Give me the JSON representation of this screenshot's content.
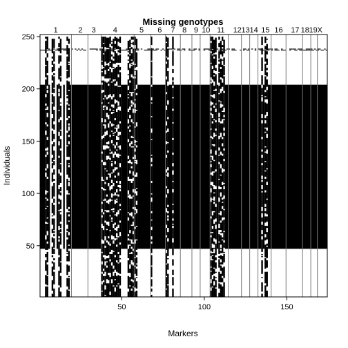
{
  "chart_data": {
    "type": "heatmap",
    "title": "Missing genotypes",
    "xlabel": "Markers",
    "ylabel": "Individuals",
    "xlim": [
      0.5,
      174.5
    ],
    "ylim": [
      1,
      252
    ],
    "x_ticks": [
      50,
      100,
      150
    ],
    "y_ticks": [
      50,
      100,
      150,
      200,
      250
    ],
    "chromosomes": [
      {
        "name": "1",
        "start": 1,
        "end": 19,
        "label_at": 10
      },
      {
        "name": "2",
        "start": 20,
        "end": 29,
        "label_at": 25
      },
      {
        "name": "3",
        "start": 30,
        "end": 37,
        "label_at": 33
      },
      {
        "name": "4",
        "start": 38,
        "end": 57,
        "label_at": 46
      },
      {
        "name": "5",
        "start": 58,
        "end": 67,
        "label_at": 62
      },
      {
        "name": "6",
        "start": 68,
        "end": 76,
        "label_at": 73
      },
      {
        "name": "7",
        "start": 77,
        "end": 85,
        "label_at": 81
      },
      {
        "name": "8",
        "start": 86,
        "end": 92,
        "label_at": 88
      },
      {
        "name": "9",
        "start": 93,
        "end": 97,
        "label_at": 95
      },
      {
        "name": "10",
        "start": 98,
        "end": 103,
        "label_at": 101
      },
      {
        "name": "11",
        "start": 104,
        "end": 114,
        "label_at": 110
      },
      {
        "name": "12",
        "start": 115,
        "end": 122,
        "label_at": 120
      },
      {
        "name": "13",
        "start": 123,
        "end": 127,
        "label_at": 125
      },
      {
        "name": "14",
        "start": 128,
        "end": 132,
        "label_at": 130
      },
      {
        "name": "15",
        "start": 133,
        "end": 140,
        "label_at": 137
      },
      {
        "name": "16",
        "start": 141,
        "end": 149,
        "label_at": 145
      },
      {
        "name": "17",
        "start": 150,
        "end": 159,
        "label_at": 155
      },
      {
        "name": "18",
        "start": 160,
        "end": 164,
        "label_at": 161
      },
      {
        "name": "19",
        "start": 165,
        "end": 168,
        "label_at": 166
      },
      {
        "name": "X",
        "start": 169,
        "end": 174,
        "label_at": 170
      }
    ],
    "missing_individuals_block": [
      47,
      204
    ],
    "fully_missing_marker_ranges": [
      [
        1,
        3
      ],
      [
        6,
        6
      ],
      [
        11,
        11
      ],
      [
        15,
        15
      ],
      [
        19,
        37
      ],
      [
        50,
        53
      ],
      [
        60,
        67
      ],
      [
        69,
        76
      ],
      [
        79,
        80
      ],
      [
        82,
        103
      ],
      [
        108,
        108
      ],
      [
        113,
        134
      ],
      [
        136,
        136
      ],
      [
        139,
        174
      ]
    ],
    "sparse_missing_marker_ranges": [
      [
        4,
        5
      ],
      [
        8,
        9
      ],
      [
        12,
        13
      ],
      [
        17,
        18
      ],
      [
        38,
        49
      ],
      [
        54,
        57
      ],
      [
        58,
        59
      ],
      [
        68,
        68
      ],
      [
        77,
        78
      ],
      [
        81,
        81
      ],
      [
        104,
        107
      ],
      [
        109,
        112
      ],
      [
        135,
        135
      ],
      [
        137,
        138
      ]
    ],
    "scattered_missing_individuals": [
      237,
      238
    ]
  }
}
